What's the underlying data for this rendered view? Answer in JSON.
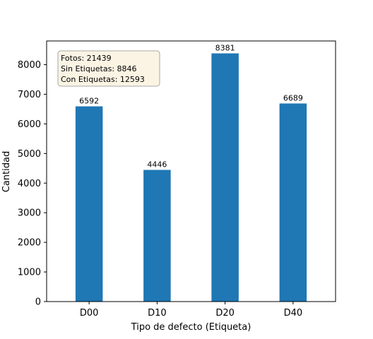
{
  "chart_data": {
    "type": "bar",
    "categories": [
      "D00",
      "D10",
      "D20",
      "D40"
    ],
    "values": [
      6592,
      4446,
      8381,
      6689
    ],
    "data_labels": [
      "6592",
      "4446",
      "8381",
      "6689"
    ],
    "title": "",
    "xlabel": "Tipo de defecto (Etiqueta)",
    "ylabel": "Cantidad",
    "ylim": [
      0,
      8800
    ],
    "yticks": [
      0,
      1000,
      2000,
      3000,
      4000,
      5000,
      6000,
      7000,
      8000
    ],
    "ytick_labels": [
      "0",
      "1000",
      "2000",
      "3000",
      "4000",
      "5000",
      "6000",
      "7000",
      "8000"
    ],
    "grid": false,
    "bar_color": "#1f77b4",
    "annotation": {
      "lines": [
        "Fotos: 21439",
        "Sin Etiquetas: 8846",
        "Con Etiquetas: 12593"
      ],
      "placement": "top-left",
      "box_fill": "#fbf4e4",
      "box_edge": "#a8a8a8"
    }
  }
}
